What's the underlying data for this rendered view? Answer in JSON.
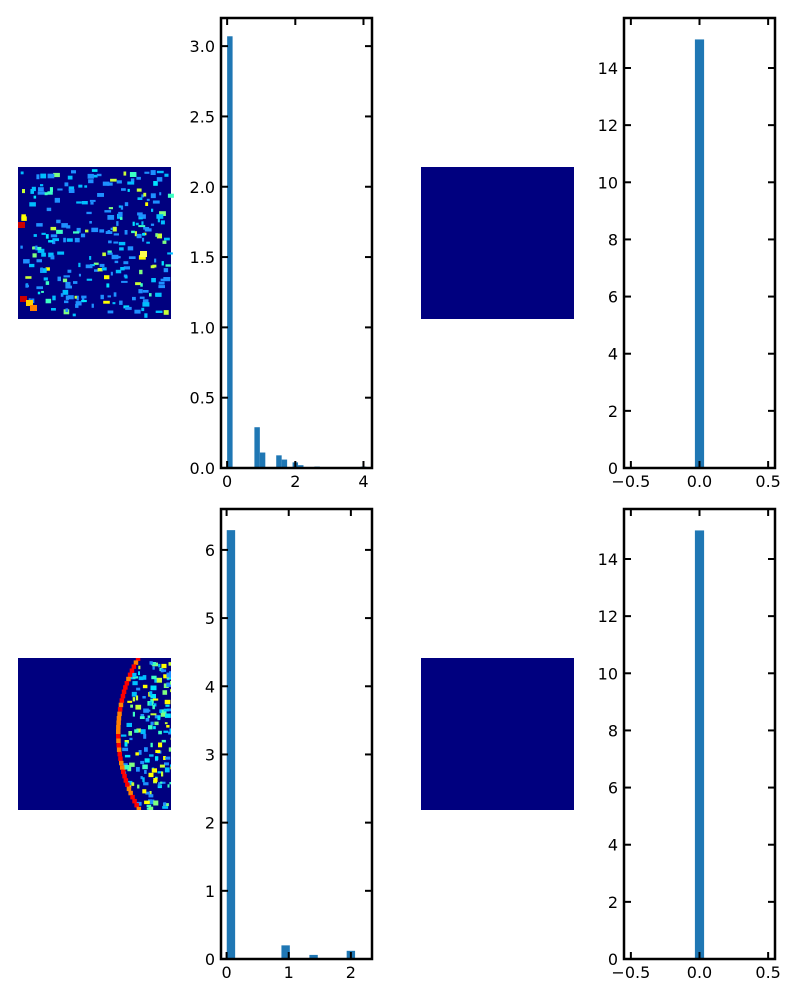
{
  "chart_data": [
    {
      "id": "top-left-image",
      "type": "heatmap",
      "title": "",
      "colormap": "jet",
      "content": "sparse cell-like speckle pattern (mostly dark blue with cyan/green/yellow/red spots)"
    },
    {
      "id": "top-left-hist",
      "type": "bar",
      "title": "",
      "xlabel": "",
      "ylabel": "",
      "xlim": [
        -0.18,
        4.25
      ],
      "ylim": [
        0,
        3.2
      ],
      "xticks": [
        0,
        2,
        4
      ],
      "yticks": [
        0.0,
        0.5,
        1.0,
        1.5,
        2.0,
        2.5,
        3.0
      ],
      "bin_width": 0.16,
      "x": [
        0.08,
        0.88,
        1.04,
        1.52,
        1.68,
        2.0,
        2.16,
        2.64,
        4.0
      ],
      "values": [
        3.07,
        0.29,
        0.11,
        0.09,
        0.06,
        0.04,
        0.02,
        0.01,
        0.01
      ],
      "color": "#1f77b4"
    },
    {
      "id": "top-right-image",
      "type": "heatmap",
      "title": "",
      "colormap": "jet",
      "content": "uniform (all zero, dark blue)"
    },
    {
      "id": "top-right-hist",
      "type": "bar",
      "title": "",
      "xlabel": "",
      "ylabel": "",
      "xlim": [
        -0.55,
        0.55
      ],
      "ylim": [
        0,
        15.75
      ],
      "xticks": [
        -0.5,
        0.0,
        0.5
      ],
      "xtick_labels": [
        "−0.5",
        "0.0",
        "0.5"
      ],
      "yticks": [
        0,
        2,
        4,
        6,
        8,
        10,
        12,
        14
      ],
      "bin_width": 0.067,
      "x": [
        0.0
      ],
      "values": [
        15.0
      ],
      "color": "#1f77b4"
    },
    {
      "id": "bottom-left-image",
      "type": "heatmap",
      "title": "",
      "colormap": "jet",
      "content": "dark blue field with a red arc boundary and speckle pattern on the right"
    },
    {
      "id": "bottom-left-hist",
      "type": "bar",
      "title": "",
      "xlabel": "",
      "ylabel": "",
      "xlim": [
        -0.09,
        2.34
      ],
      "ylim": [
        0,
        6.6
      ],
      "xticks": [
        0,
        1,
        2
      ],
      "yticks": [
        0,
        1,
        2,
        3,
        4,
        5,
        6
      ],
      "bin_width": 0.135,
      "x": [
        0.07,
        0.95,
        1.4,
        2.0
      ],
      "values": [
        6.29,
        0.2,
        0.06,
        0.12
      ],
      "color": "#1f77b4"
    },
    {
      "id": "bottom-right-image",
      "type": "heatmap",
      "title": "",
      "colormap": "jet",
      "content": "uniform (all zero, dark blue)"
    },
    {
      "id": "bottom-right-hist",
      "type": "bar",
      "title": "",
      "xlabel": "",
      "ylabel": "",
      "xlim": [
        -0.55,
        0.55
      ],
      "ylim": [
        0,
        15.75
      ],
      "xticks": [
        -0.5,
        0.0,
        0.5
      ],
      "xtick_labels": [
        "−0.5",
        "0.0",
        "0.5"
      ],
      "yticks": [
        0,
        2,
        4,
        6,
        8,
        10,
        12,
        14
      ],
      "bin_width": 0.067,
      "x": [
        0.0
      ],
      "values": [
        15.0
      ],
      "color": "#1f77b4"
    }
  ]
}
